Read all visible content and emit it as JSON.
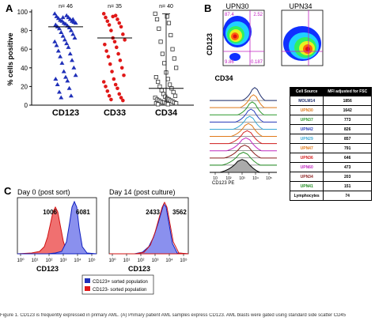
{
  "panel_labels": {
    "a": "A",
    "b": "B",
    "c": "C"
  },
  "panel_a": {
    "ylabel": "% cells positive",
    "yticks": [
      "0",
      "20",
      "40",
      "60",
      "80",
      "100"
    ],
    "groups": [
      {
        "name": "CD123",
        "n_label": "n= 46",
        "median": 84
      },
      {
        "name": "CD33",
        "n_label": "n= 35",
        "median": 72
      },
      {
        "name": "CD34",
        "n_label": "n= 40",
        "median": 18
      }
    ]
  },
  "panel_b": {
    "samples": [
      "UPN30",
      "UPN34"
    ],
    "ylabel": "CD123",
    "xlabel": "CD34",
    "quadrants": [
      {
        "ul": "87.4",
        "ur": "2.52",
        "ll": "9.86",
        "lr": "0.187"
      },
      {
        "ul": "",
        "ur": "",
        "ll": "",
        "lr": ""
      }
    ],
    "histogram_xlabel": "CD123 PE",
    "histogram_ticks": [
      "10",
      "10²",
      "10³",
      "10⁴",
      "10⁵"
    ],
    "histogram_lines": [
      {
        "color": "#1c2c6c",
        "label": "MOLM14",
        "mfi": "1856"
      },
      {
        "color": "#e07a1a",
        "label": "UPN30",
        "mfi": "1642"
      },
      {
        "color": "#2e9a2e",
        "label": "UPN37",
        "mfi": "773"
      },
      {
        "color": "#2b3fbf",
        "label": "UPN42",
        "mfi": "826"
      },
      {
        "color": "#3aa9d6",
        "label": "UPN29",
        "mfi": "857"
      },
      {
        "color": "#e07a1a",
        "label": "UPN47",
        "mfi": "791"
      },
      {
        "color": "#d42020",
        "label": "UPN36",
        "mfi": "646"
      },
      {
        "color": "#c22dc2",
        "label": "UPN60",
        "mfi": "473"
      },
      {
        "color": "#8c1f1f",
        "label": "UPN34",
        "mfi": "203"
      },
      {
        "color": "#1e8a1e",
        "label": "UPN41",
        "mfi": "151"
      },
      {
        "color": "#000000",
        "label": "Lymphocytes",
        "mfi": "74"
      }
    ],
    "table_headers": [
      "Cell Source",
      "MFI adjusted for FSC"
    ]
  },
  "panel_c": {
    "plots": [
      {
        "title": "Day 0 (post sort)",
        "left_value": "1006",
        "right_value": "6081"
      },
      {
        "title": "Day 14 (post culture)",
        "left_value": "2433",
        "right_value": "3562"
      }
    ],
    "xlabel": "CD123",
    "ticks": [
      "10⁰",
      "10¹",
      "10²",
      "10³",
      "10⁴",
      "10⁵"
    ],
    "legend": [
      {
        "label": "CD123+ sorted population",
        "color": "#1f2fb8"
      },
      {
        "label": "CD123- sorted population",
        "color": "#e01818"
      }
    ]
  },
  "caption": "Figure 1. CD123 is frequently expressed in primary AML. (A) Primary patient AML samples express CD123. AML blasts were gated using standard side scatter CD45"
}
